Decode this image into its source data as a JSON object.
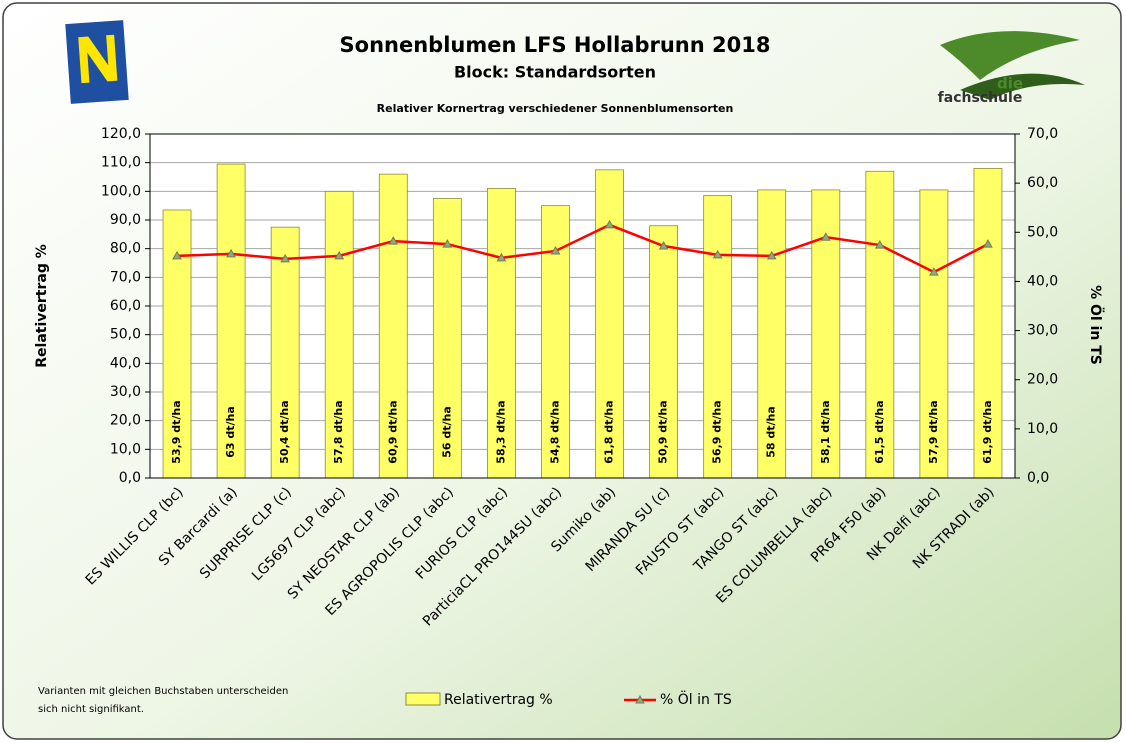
{
  "chart_data": {
    "type": "bar",
    "title": "Sonnenblumen LFS Hollabrunn 2018",
    "subtitle": "Block: Standardsorten",
    "caption": "Relativer Kornertrag verschiedener Sonnenblumensorten",
    "y_label": "Relativertrag %",
    "y2_label": "% Öl in TS",
    "footnote": [
      "Varianten mit gleichen Buchstaben unterscheiden",
      "sich nicht signifikant."
    ],
    "logo_text": [
      "die",
      "fachschule"
    ],
    "categories": [
      "ES WILLIS CLP (bc)",
      "SY Barcardi (a)",
      "SURPRISE CLP (c)",
      "LG5697 CLP (abc)",
      "SY NEOSTAR CLP (ab)",
      "ES AGROPOLIS CLP (abc)",
      "FURIOS CLP (abc)",
      "ParticiaCL PRO144SU (abc)",
      "Sumiko (ab)",
      "MIRANDA SU (c)",
      "FAUSTO ST (abc)",
      "TANGO ST (abc)",
      "ES COLUMBELLA (abc)",
      "PR64 F50 (ab)",
      "NK Delfi (abc)",
      "NK STRADI (ab)"
    ],
    "bar_labels": [
      "53,9 dt/ha",
      "63 dt/ha",
      "50,4 dt/ha",
      "57,8 dt/ha",
      "60,9 dt/ha",
      "56 dt/ha",
      "58,3 dt/ha",
      "54,8 dt/ha",
      "61,8 dt/ha",
      "50,9 dt/ha",
      "56,9 dt/ha",
      "58 dt/ha",
      "58,1 dt/ha",
      "61,5 dt/ha",
      "57,9 dt/ha",
      "61,9 dt/ha"
    ],
    "series": [
      {
        "name": "Relativertrag %",
        "type": "bar",
        "color": "#ffff66",
        "values": [
          93.5,
          109.5,
          87.5,
          100,
          106,
          97.5,
          101,
          95,
          107.5,
          88,
          98.5,
          100.5,
          100.5,
          107,
          100.5,
          108
        ]
      },
      {
        "name": "% Öl in TS",
        "type": "line",
        "axis": "y2",
        "color": "#ff0000",
        "values": [
          45.2,
          45.6,
          44.6,
          45.2,
          48.2,
          47.6,
          44.8,
          46.2,
          51.5,
          47.2,
          45.4,
          45.2,
          49.0,
          47.4,
          41.9,
          47.6
        ]
      }
    ],
    "ylim": [
      0,
      120
    ],
    "yticks": [
      {
        "value": 0,
        "label": "0,0"
      },
      {
        "value": 10,
        "label": "10,0"
      },
      {
        "value": 20,
        "label": "20,0"
      },
      {
        "value": 30,
        "label": "30,0"
      },
      {
        "value": 40,
        "label": "40,0"
      },
      {
        "value": 50,
        "label": "50,0"
      },
      {
        "value": 60,
        "label": "60,0"
      },
      {
        "value": 70,
        "label": "70,0"
      },
      {
        "value": 80,
        "label": "80,0"
      },
      {
        "value": 90,
        "label": "90,0"
      },
      {
        "value": 100,
        "label": "100,0"
      },
      {
        "value": 110,
        "label": "110,0"
      },
      {
        "value": 120,
        "label": "120,0"
      }
    ],
    "y2lim": [
      0,
      70
    ],
    "y2ticks": [
      {
        "value": 0,
        "label": "0,0"
      },
      {
        "value": 10,
        "label": "10,0"
      },
      {
        "value": 20,
        "label": "20,0"
      },
      {
        "value": 30,
        "label": "30,0"
      },
      {
        "value": 40,
        "label": "40,0"
      },
      {
        "value": 50,
        "label": "50,0"
      },
      {
        "value": 60,
        "label": "60,0"
      },
      {
        "value": 70,
        "label": "70,0"
      }
    ],
    "grid": true
  }
}
